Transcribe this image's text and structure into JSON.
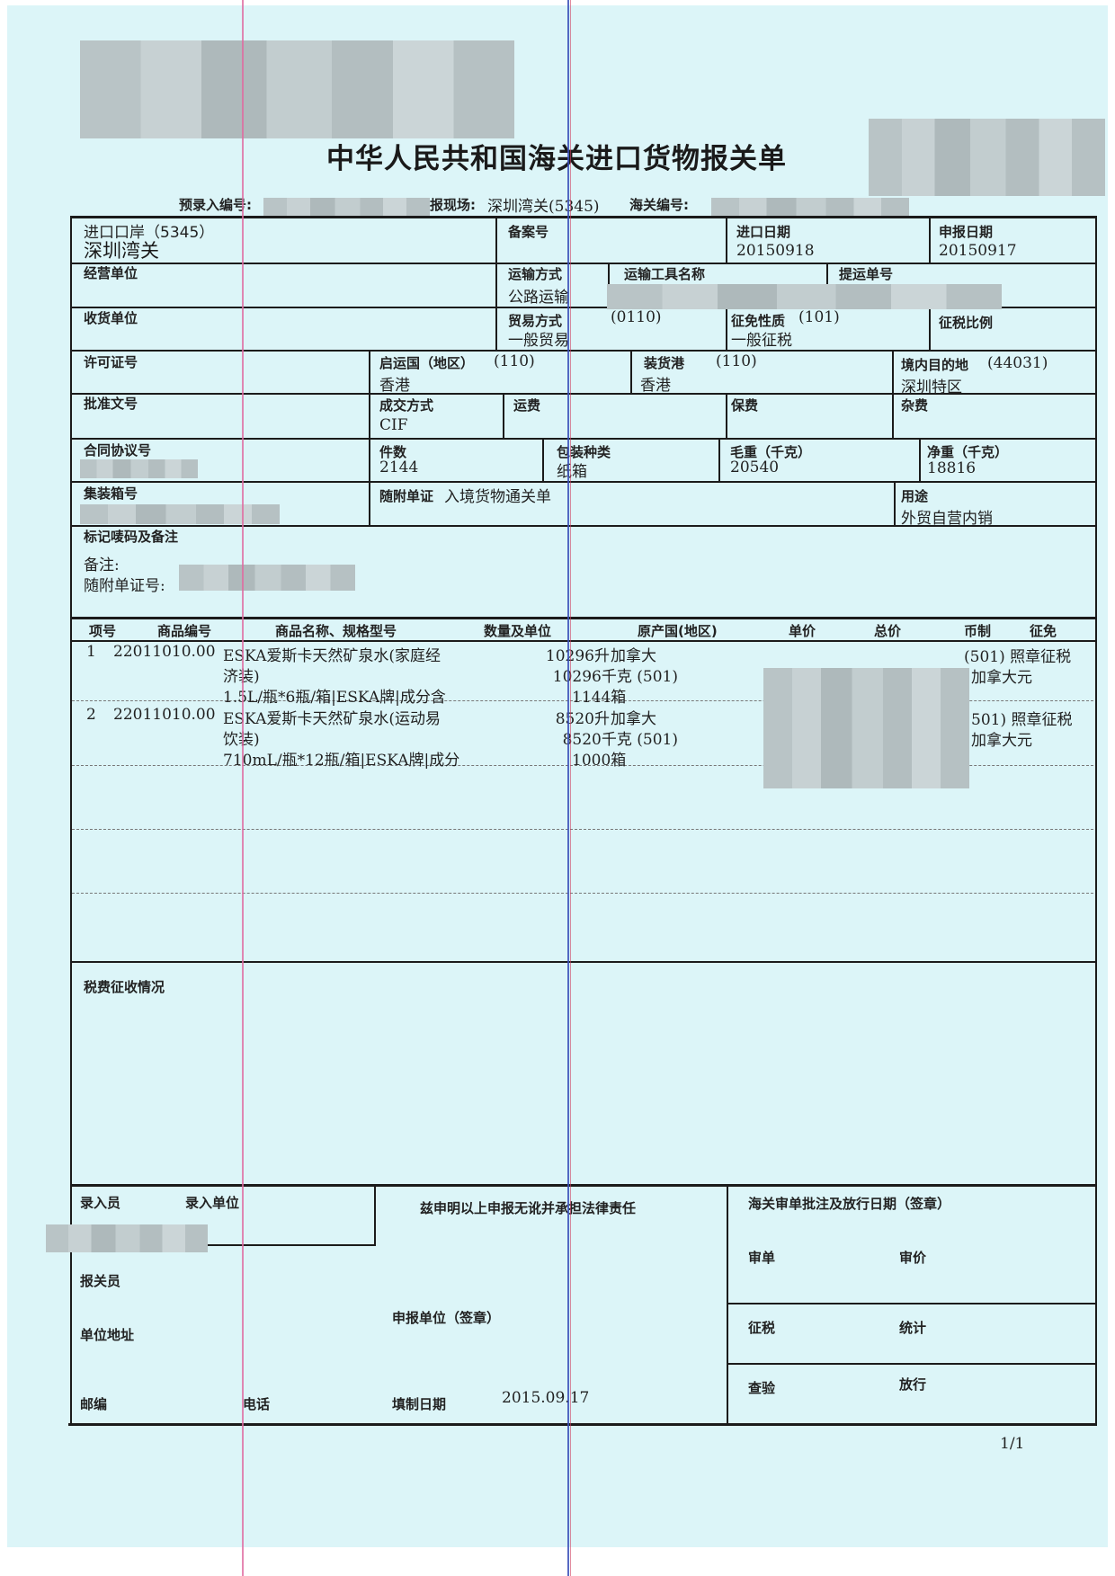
{
  "document": {
    "title": "中华人民共和国海关进口货物报关单",
    "paper_color": "#dcf5f8",
    "page_number": "1/1"
  },
  "header": {
    "pre_entry_label": "预录入编号:",
    "declaration_site_label": "报现场:",
    "declaration_site_value": "深圳湾关(5345)",
    "customs_no_label": "海关编号:"
  },
  "fields": {
    "import_port_label": "进口口岸（5345）",
    "import_port_value": "深圳湾关",
    "record_no_label": "备案号",
    "import_date_label": "进口日期",
    "import_date_value": "20150918",
    "declare_date_label": "申报日期",
    "declare_date_value": "20150917",
    "operator_label": "经营单位",
    "transport_mode_label": "运输方式",
    "transport_mode_value": "公路运输",
    "vehicle_name_label": "运输工具名称",
    "bill_no_label": "提运单号",
    "consignee_label": "收货单位",
    "trade_mode_label": "贸易方式",
    "trade_mode_code": "(0110)",
    "trade_mode_value": "一般贸易",
    "exemption_nature_label": "征免性质",
    "exemption_nature_code": "(101)",
    "exemption_nature_value": "一般征税",
    "tax_ratio_label": "征税比例",
    "license_label": "许可证号",
    "origin_country_label": "启运国（地区）",
    "origin_country_code": "(110)",
    "origin_country_value": "香港",
    "loading_port_label": "装货港",
    "loading_port_code": "(110)",
    "loading_port_value": "香港",
    "destination_label": "境内目的地",
    "destination_code": "(44031)",
    "destination_value": "深圳特区",
    "approval_no_label": "批准文号",
    "deal_mode_label": "成交方式",
    "deal_mode_value": "CIF",
    "freight_label": "运费",
    "insurance_label": "保费",
    "misc_label": "杂费",
    "contract_label": "合同协议号",
    "pieces_label": "件数",
    "pieces_value": "2144",
    "package_label": "包装种类",
    "package_value": "纸箱",
    "gross_weight_label": "毛重（千克）",
    "gross_weight_value": "20540",
    "net_weight_label": "净重（千克）",
    "net_weight_value": "18816",
    "container_label": "集装箱号",
    "attached_docs_label": "随附单证",
    "attached_docs_value": "入境货物通关单",
    "usage_label": "用途",
    "usage_value": "外贸自营内销",
    "marks_label": "标记唛码及备注",
    "remarks_label": "备注:",
    "attached_doc_no_label": "随附单证号:"
  },
  "items_table": {
    "columns": [
      "项号",
      "商品编号",
      "商品名称、规格型号",
      "数量及单位",
      "原产国(地区)",
      "单价",
      "总价",
      "币制",
      "征免"
    ],
    "rows": [
      {
        "no": "1",
        "code": "22011010.00",
        "name_lines": [
          "ESKA爱斯卡天然矿泉水(家庭经",
          "济装)",
          "1.5L/瓶*6瓶/箱|ESKA牌|成分含"
        ],
        "qty_lines": [
          "10296升",
          "10296千克 (501)",
          "1144箱"
        ],
        "origin": "加拿大",
        "exemption": "(501) 照章征税",
        "currency": "加拿大元"
      },
      {
        "no": "2",
        "code": "22011010.00",
        "name_lines": [
          "ESKA爱斯卡天然矿泉水(运动易",
          "饮装)",
          "710mL/瓶*12瓶/箱|ESKA牌|成分"
        ],
        "qty_lines": [
          "8520升",
          "8520千克 (501)",
          "1000箱"
        ],
        "origin": "加拿大",
        "exemption": "501) 照章征税",
        "currency": "加拿大元"
      }
    ]
  },
  "tax_section": {
    "label": "税费征收情况"
  },
  "footer": {
    "entry_clerk_label": "录入员",
    "entry_unit_label": "录入单位",
    "statement": "兹申明以上申报无讹并承担法律责任",
    "broker_label": "报关员",
    "unit_address_label": "单位地址",
    "declaring_unit_label": "申报单位（签章）",
    "postcode_label": "邮编",
    "phone_label": "电话",
    "fill_date_label": "填制日期",
    "fill_date_value": "2015.09.17",
    "customs_approval_label": "海关审单批注及放行日期（签章）",
    "review_label": "审单",
    "price_review_label": "审价",
    "tax_label": "征税",
    "statistics_label": "统计",
    "inspection_label": "查验",
    "release_label": "放行"
  }
}
